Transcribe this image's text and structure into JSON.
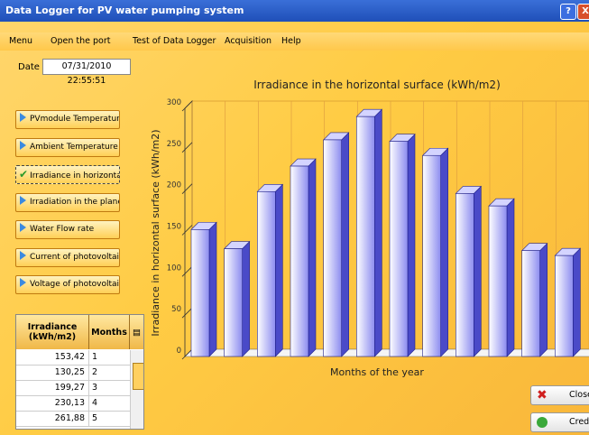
{
  "window": {
    "title": "Data Logger for PV water pumping system",
    "title_buttons": [
      "?",
      "X"
    ]
  },
  "menu": [
    "Menu",
    "Open the port",
    "Test of Data Logger",
    "Acquisition",
    "Help"
  ],
  "date": {
    "label": "Date",
    "value": "07/31/2010 22:55:51"
  },
  "sidebar_buttons": [
    "PVmodule Temperature",
    "Ambient Temperature",
    "Irradiance in horizontal",
    "Irradiation in the plane",
    "Water Flow rate",
    "Current of photovoltaic",
    "Voltage of photovoltaic"
  ],
  "table": {
    "headers": [
      "Irradiance (kWh/m2)",
      "Months"
    ],
    "rows": [
      [
        "153,42",
        "1"
      ],
      [
        "130,25",
        "2"
      ],
      [
        "199,27",
        "3"
      ],
      [
        "230,13",
        "4"
      ],
      [
        "261,88",
        "5"
      ]
    ]
  },
  "actions": [
    "Close",
    "Credit"
  ],
  "chart_data": {
    "type": "bar",
    "title": "Irradiance in the horizontal surface (kWh/m2)",
    "x_label": "Months of the year",
    "y_label": "Irradiance in horizontal surface (kWh/m2)",
    "values": [
      153.42,
      130.25,
      199.27,
      230.13,
      261.88,
      290,
      260,
      243,
      197,
      182,
      128,
      122
    ],
    "color": "#8c8cf0",
    "ylim": [
      0,
      300
    ],
    "yticks": [
      0,
      50,
      100,
      150,
      200,
      250,
      300
    ]
  }
}
